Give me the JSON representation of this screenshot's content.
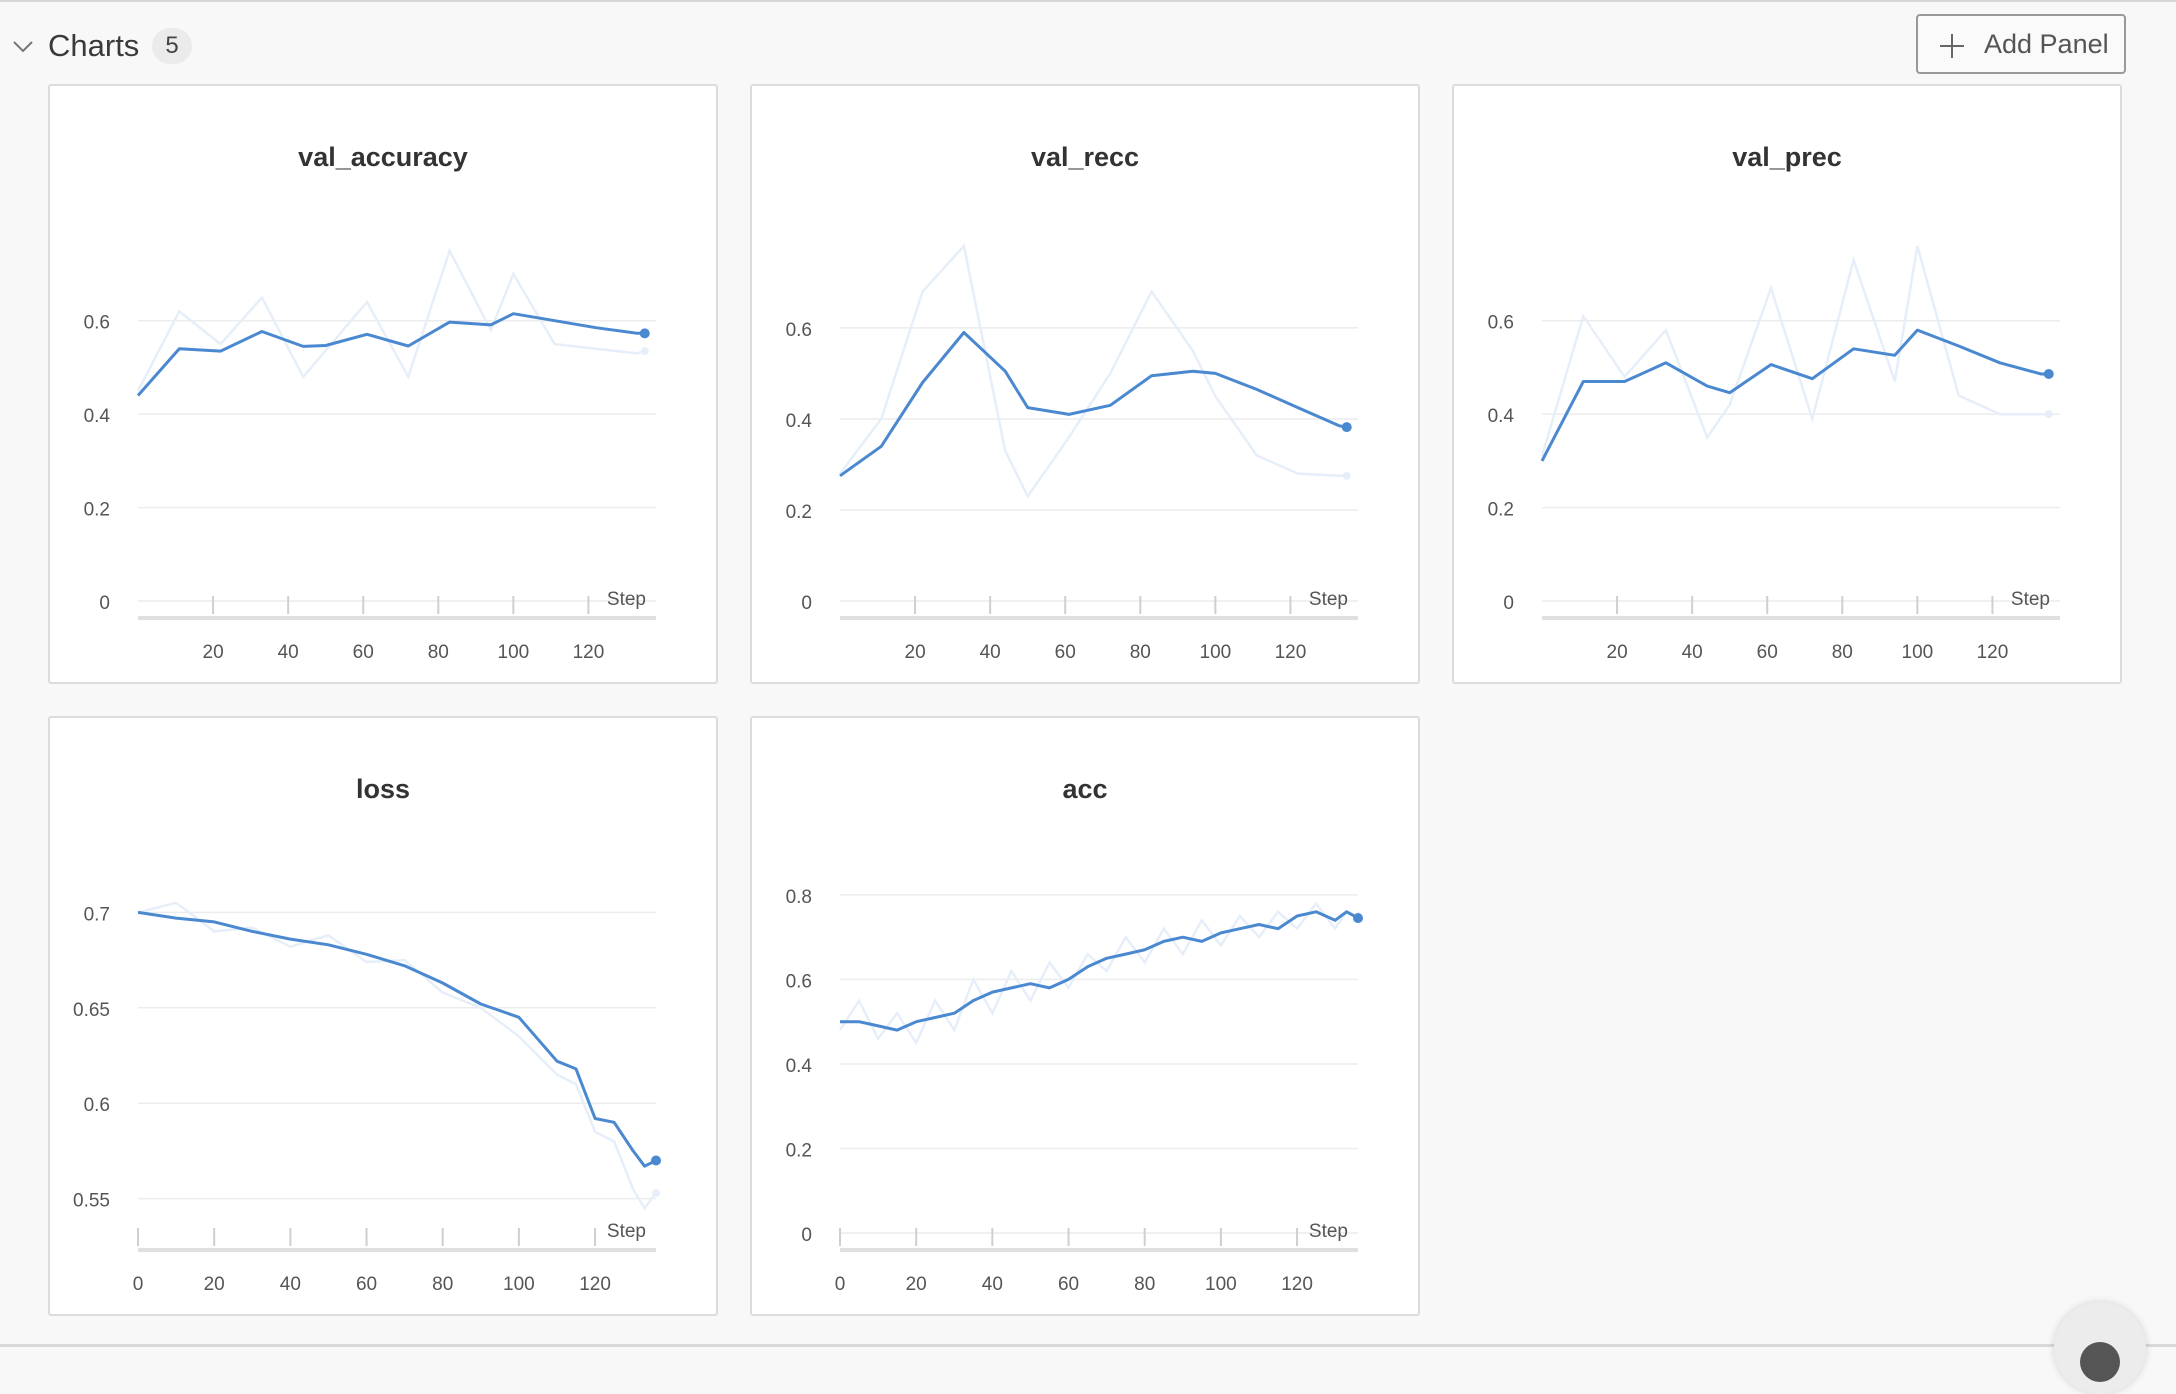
{
  "section": {
    "title": "Charts",
    "count": "5",
    "add_panel_label": "Add Panel",
    "collapse_icon": "chevron-down-icon",
    "add_icon": "plus-icon"
  },
  "colors": {
    "main_line": "#4a88d0",
    "raw_line": "#e6eff9",
    "grid": "#ececec",
    "axis_text": "#555555"
  },
  "chart_data": [
    {
      "type": "line",
      "title": "val_accuracy",
      "xlabel": "Step",
      "x_ticks": [
        "20",
        "40",
        "60",
        "80",
        "100",
        "120"
      ],
      "y_ticks": [
        "0",
        "0.2",
        "0.4",
        "0.6"
      ],
      "xlim": [
        0,
        138
      ],
      "ylim": [
        0,
        0.76
      ],
      "series": [
        {
          "x": [
            0,
            11,
            22,
            33,
            44,
            50,
            61,
            72,
            83,
            94,
            100,
            111,
            122,
            133,
            135
          ],
          "values": [
            0.44,
            0.54,
            0.535,
            0.577,
            0.545,
            0.547,
            0.571,
            0.546,
            0.597,
            0.591,
            0.615,
            0.6,
            0.585,
            0.573,
            0.573
          ]
        },
        {
          "x": [
            0,
            11,
            22,
            33,
            44,
            61,
            72,
            83,
            94,
            100,
            111,
            122,
            133,
            135
          ],
          "values": [
            0.45,
            0.62,
            0.55,
            0.65,
            0.48,
            0.64,
            0.48,
            0.75,
            0.58,
            0.7,
            0.55,
            0.54,
            0.53,
            0.535
          ]
        }
      ]
    },
    {
      "type": "line",
      "title": "val_recc",
      "xlabel": "Step",
      "x_ticks": [
        "20",
        "40",
        "60",
        "80",
        "100",
        "120"
      ],
      "y_ticks": [
        "0",
        "0.2",
        "0.4",
        "0.6"
      ],
      "xlim": [
        0,
        138
      ],
      "ylim": [
        0,
        0.78
      ],
      "series": [
        {
          "x": [
            0,
            11,
            22,
            33,
            44,
            50,
            61,
            72,
            83,
            94,
            100,
            111,
            122,
            133,
            135
          ],
          "values": [
            0.275,
            0.34,
            0.48,
            0.59,
            0.505,
            0.425,
            0.41,
            0.43,
            0.495,
            0.505,
            0.5,
            0.465,
            0.425,
            0.385,
            0.382
          ]
        },
        {
          "x": [
            0,
            11,
            22,
            33,
            44,
            50,
            61,
            72,
            83,
            94,
            100,
            111,
            122,
            133,
            135
          ],
          "values": [
            0.28,
            0.4,
            0.68,
            0.78,
            0.33,
            0.23,
            0.36,
            0.5,
            0.68,
            0.55,
            0.45,
            0.32,
            0.28,
            0.275,
            0.275
          ]
        }
      ]
    },
    {
      "type": "line",
      "title": "val_prec",
      "xlabel": "Step",
      "x_ticks": [
        "20",
        "40",
        "60",
        "80",
        "100",
        "120"
      ],
      "y_ticks": [
        "0",
        "0.2",
        "0.4",
        "0.6"
      ],
      "xlim": [
        0,
        138
      ],
      "ylim": [
        0,
        0.76
      ],
      "series": [
        {
          "x": [
            0,
            11,
            22,
            33,
            44,
            50,
            61,
            72,
            83,
            94,
            100,
            111,
            122,
            133,
            135
          ],
          "values": [
            0.3,
            0.47,
            0.47,
            0.51,
            0.46,
            0.446,
            0.506,
            0.476,
            0.54,
            0.526,
            0.58,
            0.546,
            0.51,
            0.486,
            0.486
          ]
        },
        {
          "x": [
            0,
            11,
            22,
            33,
            44,
            50,
            61,
            72,
            83,
            94,
            100,
            111,
            122,
            133,
            135
          ],
          "values": [
            0.31,
            0.61,
            0.48,
            0.58,
            0.35,
            0.42,
            0.67,
            0.39,
            0.73,
            0.47,
            0.76,
            0.44,
            0.4,
            0.4,
            0.4
          ]
        }
      ]
    },
    {
      "type": "line",
      "title": "loss",
      "xlabel": "Step",
      "x_ticks": [
        "0",
        "20",
        "40",
        "60",
        "80",
        "100",
        "120"
      ],
      "y_ticks": [
        "0.55",
        "0.6",
        "0.65",
        "0.7"
      ],
      "xlim": [
        0,
        136
      ],
      "ylim": [
        0.532,
        0.718
      ],
      "series": [
        {
          "x": [
            0,
            10,
            20,
            30,
            40,
            50,
            60,
            70,
            80,
            90,
            100,
            110,
            115,
            120,
            125,
            130,
            133,
            136
          ],
          "values": [
            0.7,
            0.697,
            0.695,
            0.69,
            0.686,
            0.683,
            0.678,
            0.672,
            0.663,
            0.652,
            0.645,
            0.622,
            0.618,
            0.592,
            0.59,
            0.575,
            0.567,
            0.57
          ]
        },
        {
          "x": [
            0,
            10,
            20,
            30,
            40,
            50,
            60,
            70,
            80,
            90,
            100,
            110,
            115,
            120,
            125,
            130,
            133,
            136
          ],
          "values": [
            0.7,
            0.705,
            0.69,
            0.692,
            0.682,
            0.688,
            0.674,
            0.675,
            0.658,
            0.65,
            0.635,
            0.615,
            0.61,
            0.585,
            0.58,
            0.555,
            0.545,
            0.553
          ]
        }
      ]
    },
    {
      "type": "line",
      "title": "acc",
      "xlabel": "Step",
      "x_ticks": [
        "0",
        "20",
        "40",
        "60",
        "80",
        "100",
        "120"
      ],
      "y_ticks": [
        "0",
        "0.2",
        "0.4",
        "0.6",
        "0.8"
      ],
      "xlim": [
        0,
        136
      ],
      "ylim": [
        0,
        0.84
      ],
      "series": [
        {
          "x": [
            0,
            5,
            10,
            15,
            20,
            25,
            30,
            35,
            40,
            45,
            50,
            55,
            60,
            65,
            70,
            75,
            80,
            85,
            90,
            95,
            100,
            105,
            110,
            115,
            120,
            125,
            130,
            133,
            136
          ],
          "values": [
            0.5,
            0.5,
            0.49,
            0.48,
            0.5,
            0.51,
            0.52,
            0.55,
            0.57,
            0.58,
            0.59,
            0.58,
            0.6,
            0.63,
            0.65,
            0.66,
            0.67,
            0.69,
            0.7,
            0.69,
            0.71,
            0.72,
            0.73,
            0.72,
            0.75,
            0.76,
            0.74,
            0.76,
            0.745
          ]
        },
        {
          "x": [
            0,
            5,
            10,
            15,
            20,
            25,
            30,
            35,
            40,
            45,
            50,
            55,
            60,
            65,
            70,
            75,
            80,
            85,
            90,
            95,
            100,
            105,
            110,
            115,
            120,
            125,
            130,
            133,
            136
          ],
          "values": [
            0.48,
            0.55,
            0.46,
            0.52,
            0.45,
            0.55,
            0.48,
            0.6,
            0.52,
            0.62,
            0.55,
            0.64,
            0.58,
            0.66,
            0.62,
            0.7,
            0.64,
            0.72,
            0.66,
            0.74,
            0.68,
            0.75,
            0.7,
            0.76,
            0.72,
            0.78,
            0.72,
            0.76,
            0.75
          ]
        }
      ]
    }
  ]
}
